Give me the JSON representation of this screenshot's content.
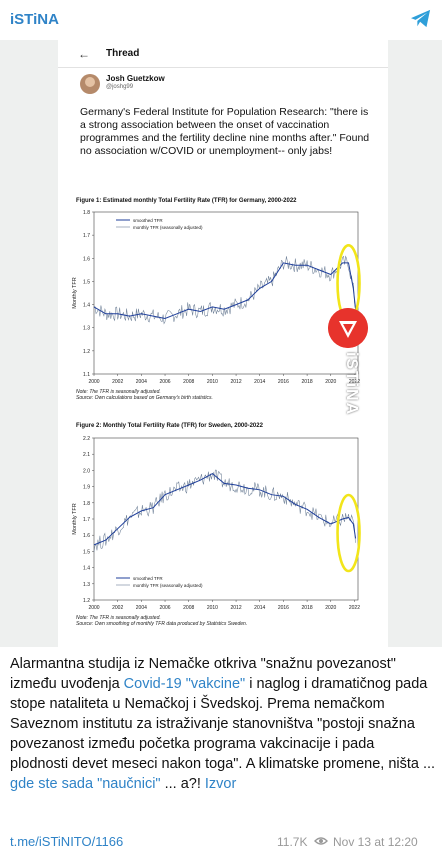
{
  "channel": {
    "name": "iSTiNA",
    "icon": "telegram-icon"
  },
  "thread": {
    "back_icon": "arrow-left-icon",
    "title": "Thread",
    "author_name": "Josh Guetzkow",
    "author_handle": "@joshg99",
    "text": "Germany's Federal Institute for Population Research: \"there is a strong association between the onset of vaccination programmes and the fertility decline nine months after.\" Found no association w/COVID or unemployment-- only jabs!"
  },
  "figures": [
    {
      "caption": "Figure 1: Estimated monthly Total Fertility Rate (TFR) for Germany, 2000-2022",
      "note1": "Note: The TFR is seasonally adjusted.",
      "note2": "Source: Own calculations based on Germany's birth statistics."
    },
    {
      "caption": "Figure 2: Monthly Total Fertility Rate (TFR) for Sweden, 2000-2022",
      "note1": "Note: The TFR is seasonally adjusted.",
      "note2": "Source: Own smoothing of monthly TFR data produced by Statistics Sweden."
    }
  ],
  "watermark": {
    "text": "iSTiNA",
    "logo_icon": "istina-logo-icon"
  },
  "chart_data": [
    {
      "type": "line",
      "ylabel": "Monthly TFR",
      "ylim": [
        1.1,
        1.8
      ],
      "yticks": [
        "1.1",
        "1.2",
        "1.3",
        "1.4",
        "1.5",
        "1.6",
        "1.7",
        "1.8"
      ],
      "x_ticks": [
        "2000",
        "2002",
        "2004",
        "2006",
        "2008",
        "2010",
        "2012",
        "2014",
        "2016",
        "2018",
        "2020",
        "2022"
      ],
      "x_range": [
        2000,
        2022.3
      ],
      "legend": [
        "smoothed TFR",
        "monthly TFR (seasonally adjusted)"
      ],
      "legend_position": "top-left",
      "highlight_color": "#f2e51a",
      "series": [
        {
          "name": "smoothed TFR",
          "x": [
            2000,
            2001,
            2002,
            2003,
            2004,
            2005,
            2006,
            2007,
            2008,
            2009,
            2010,
            2011,
            2012,
            2013,
            2014,
            2015,
            2016,
            2017,
            2018,
            2019,
            2020,
            2021,
            2021.5,
            2021.9,
            2022.1
          ],
          "y": [
            1.39,
            1.36,
            1.36,
            1.35,
            1.36,
            1.35,
            1.34,
            1.36,
            1.38,
            1.37,
            1.39,
            1.38,
            1.4,
            1.42,
            1.47,
            1.5,
            1.58,
            1.57,
            1.57,
            1.55,
            1.53,
            1.58,
            1.58,
            1.47,
            1.38
          ]
        }
      ]
    },
    {
      "type": "line",
      "ylabel": "Monthly TFR",
      "ylim": [
        1.2,
        2.2
      ],
      "yticks": [
        "1.2",
        "1.3",
        "1.4",
        "1.5",
        "1.6",
        "1.7",
        "1.8",
        "1.9",
        "2.0",
        "2.1",
        "2.2"
      ],
      "x_ticks": [
        "2000",
        "2002",
        "2004",
        "2006",
        "2008",
        "2010",
        "2012",
        "2014",
        "2016",
        "2018",
        "2020",
        "2022"
      ],
      "x_range": [
        2000,
        2022.3
      ],
      "legend": [
        "smoothed TFR",
        "monthly TFR (seasonally adjusted)"
      ],
      "legend_position": "bottom-left",
      "highlight_color": "#f2e51a",
      "series": [
        {
          "name": "smoothed TFR",
          "x": [
            2000,
            2001,
            2002,
            2003,
            2004,
            2005,
            2006,
            2007,
            2008,
            2009,
            2010,
            2011,
            2012,
            2013,
            2014,
            2015,
            2016,
            2017,
            2018,
            2019,
            2020,
            2021,
            2021.5,
            2021.9,
            2022.1
          ],
          "y": [
            1.54,
            1.57,
            1.64,
            1.71,
            1.75,
            1.77,
            1.85,
            1.88,
            1.91,
            1.94,
            1.98,
            1.92,
            1.91,
            1.89,
            1.88,
            1.85,
            1.84,
            1.79,
            1.76,
            1.71,
            1.67,
            1.7,
            1.71,
            1.67,
            1.58
          ]
        }
      ]
    }
  ],
  "message": {
    "part1": "Alarmantna studija iz Nemačke otkriva \"snažnu povezanost\" između uvođenja ",
    "link1": "Covid-19 \"vakcine\"",
    "part2": " i naglog i dramatičnog pada stope nataliteta u Nemačkoj i Švedskoj. Prema nemačkom Saveznom institutu za istraživanje stanovništva \"postoji snažna povezanost između početka programa vakcinacije i pada plodnosti devet meseci nakon toga\". A klimatske promene, ništa ... ",
    "link2": "gde ste sada \"naučnici\"",
    "part3": " ... a?! ",
    "link3": "Izvor"
  },
  "footer": {
    "post_link": "t.me/iSTiNITO/1166",
    "views": "11.7K",
    "views_icon": "eye-icon",
    "date": "Nov 13 at 12:20"
  }
}
